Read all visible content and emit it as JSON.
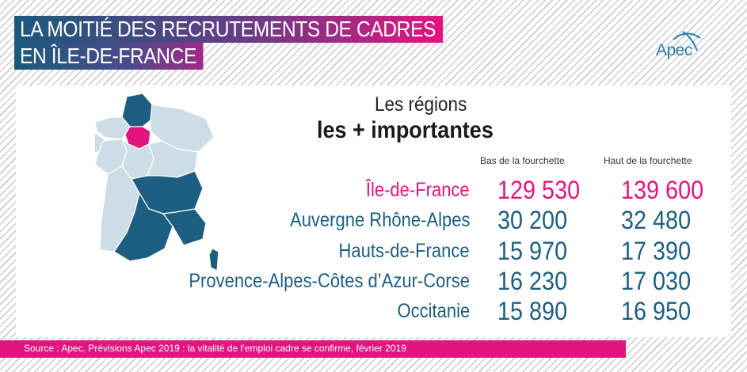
{
  "header": {
    "title_line1": "LA MOITIÉ DES RECRUTEMENTS DE CADRES",
    "title_line2": "EN ÎLE-DE-FRANCE"
  },
  "logo": {
    "text": "Apec"
  },
  "section": {
    "title_small": "Les régions",
    "title_big": "les + importantes"
  },
  "table": {
    "columns": [
      "Bas de la fourchette",
      "Haut de la fourchette"
    ],
    "rows": [
      {
        "region": "Île-de-France",
        "low": "129 530",
        "high": "139 600"
      },
      {
        "region": "Auvergne Rhône-Alpes",
        "low": "30 200",
        "high": "32 480"
      },
      {
        "region": "Hauts-de-France",
        "low": "15 970",
        "high": "17 390"
      },
      {
        "region": "Provence-Alpes-Côtes d’Azur-Corse",
        "low": "16 230",
        "high": "17 030"
      },
      {
        "region": "Occitanie",
        "low": "15 890",
        "high": "16 950"
      }
    ]
  },
  "footer": {
    "source": "Source : Apec, Prévisions Apec 2019 : la vitalité de l’emploi cadre se confirme, février 2019"
  },
  "colors": {
    "highlight": "#e4147f",
    "primary": "#1d5f80",
    "map_dark": "#1d5f80",
    "map_light": "#cddde6"
  }
}
